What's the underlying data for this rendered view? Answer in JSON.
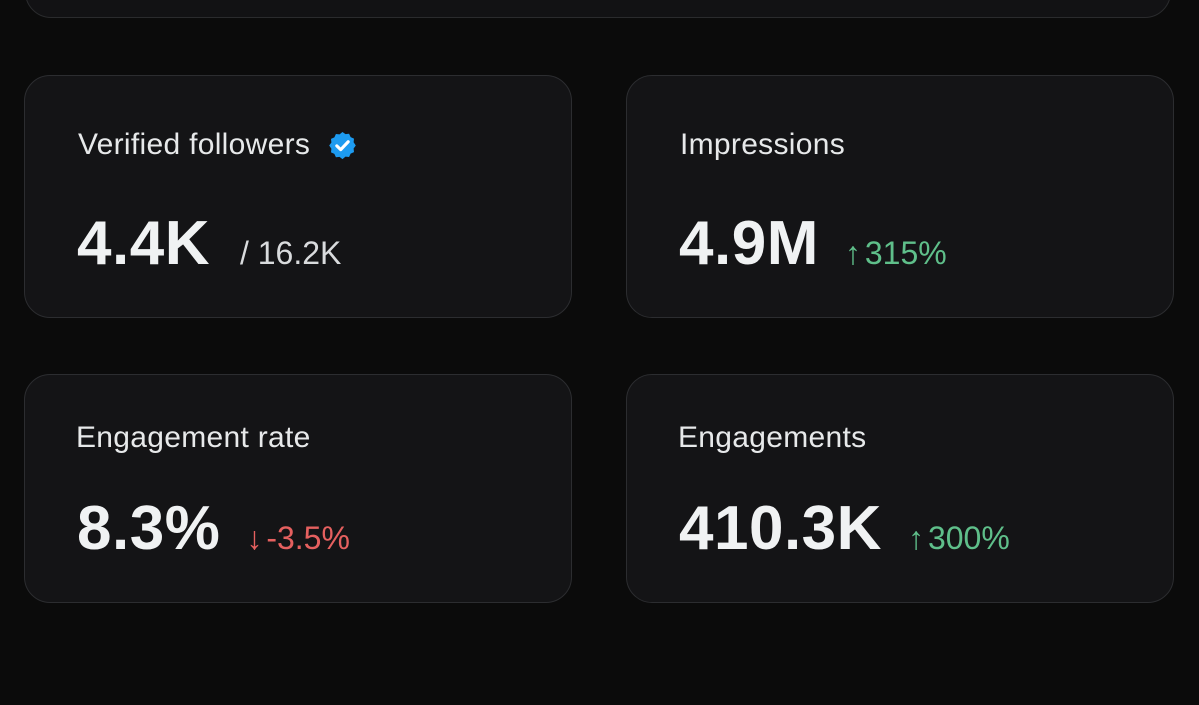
{
  "cards": [
    {
      "title": "Verified followers",
      "value": "4.4K",
      "total": "/ 16.2K",
      "icon": "verified-badge-icon"
    },
    {
      "title": "Impressions",
      "value": "4.9M",
      "delta": "315%",
      "delta_arrow": "↑",
      "delta_direction": "up"
    },
    {
      "title": "Engagement rate",
      "value": "8.3%",
      "delta": "-3.5%",
      "delta_arrow": "↓",
      "delta_direction": "down"
    },
    {
      "title": "Engagements",
      "value": "410.3K",
      "delta": "300%",
      "delta_arrow": "↑",
      "delta_direction": "up"
    }
  ],
  "colors": {
    "background": "#0b0b0b",
    "card": "#141416",
    "positive": "#5fbf8a",
    "negative": "#e5605f",
    "verified": "#1d9bf0"
  }
}
